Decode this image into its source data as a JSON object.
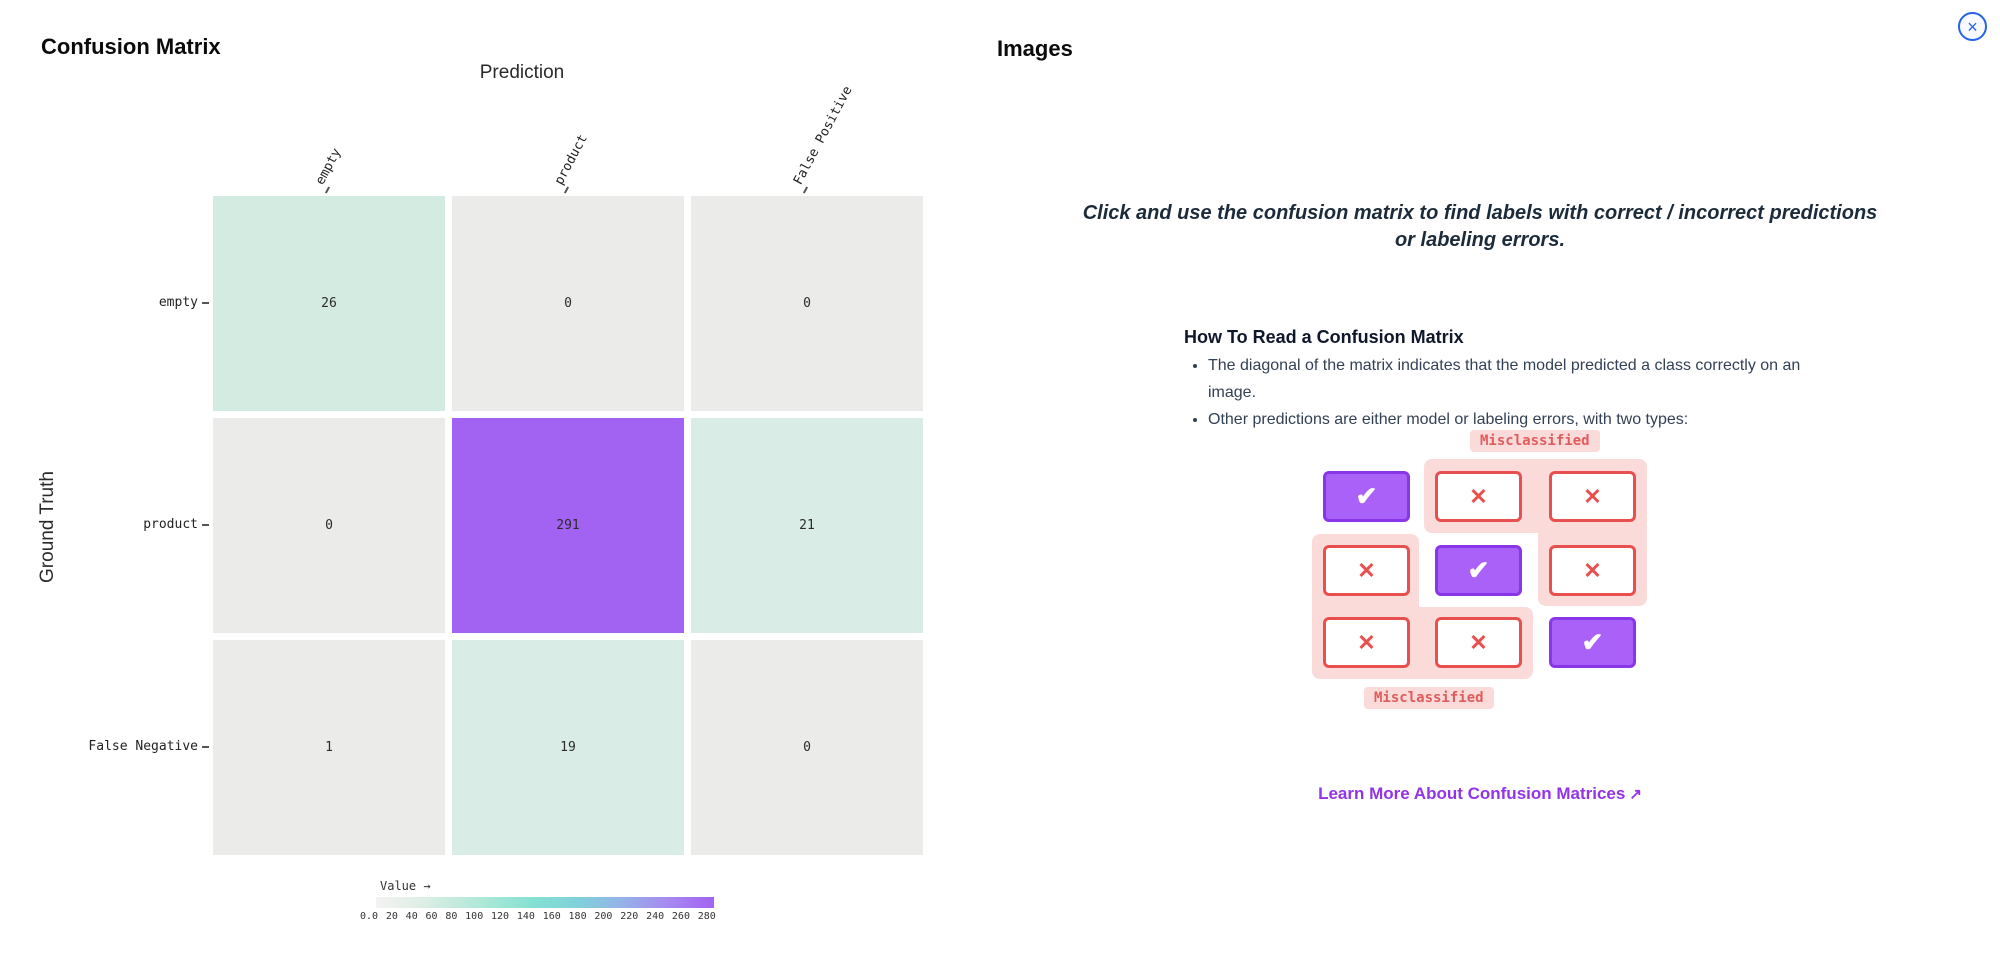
{
  "left_panel": {
    "title": "Confusion Matrix",
    "colorbar": {
      "label": "Value →",
      "ticks": [
        "0.0",
        "20",
        "40",
        "60",
        "80",
        "100",
        "120",
        "140",
        "160",
        "180",
        "200",
        "220",
        "240",
        "260",
        "280"
      ]
    }
  },
  "chart_data": {
    "type": "heatmap",
    "title": "Confusion Matrix",
    "xlabel": "Prediction",
    "ylabel": "Ground Truth",
    "x_categories": [
      "empty",
      "product",
      "False Positive"
    ],
    "y_categories": [
      "empty",
      "product",
      "False Negative"
    ],
    "matrix": [
      [
        26,
        0,
        0
      ],
      [
        0,
        291,
        21
      ],
      [
        1,
        19,
        0
      ]
    ],
    "value_range": [
      0,
      291
    ],
    "colorscale": [
      "#f4f3f1",
      "#7fe0d3",
      "#a263f2"
    ],
    "legend_position": "bottom",
    "rows": [
      {
        "label": "empty",
        "cells": [
          {
            "value": "26",
            "color": "#d4ebe2"
          },
          {
            "value": "0",
            "color": "#ebebe9"
          },
          {
            "value": "0",
            "color": "#ebebe9"
          }
        ]
      },
      {
        "label": "product",
        "cells": [
          {
            "value": "0",
            "color": "#ebebe9"
          },
          {
            "value": "291",
            "color": "#a263f2"
          },
          {
            "value": "21",
            "color": "#d9ece6"
          }
        ]
      },
      {
        "label": "False Negative",
        "cells": [
          {
            "value": "1",
            "color": "#ebebe9"
          },
          {
            "value": "19",
            "color": "#d9ece6"
          },
          {
            "value": "0",
            "color": "#ebebe9"
          }
        ]
      }
    ]
  },
  "right_panel": {
    "title": "Images",
    "close_icon": "×",
    "instruction": "Click and use the confusion matrix to find labels with correct / incorrect predictions or labeling errors.",
    "howto_heading": "How To Read a Confusion Matrix",
    "bullets": [
      "The diagonal of the matrix indicates that the model predicted a class correctly on an image.",
      "Other predictions are either model or labeling errors, with two types:"
    ],
    "diagram": {
      "misclassified_top_label": "Misclassified",
      "misclassified_bottom_label": "Misclassified",
      "check_glyph": "✔",
      "cross_glyph": "✕"
    },
    "link_label": "Learn More About Confusion Matrices",
    "link_arrow": "↗",
    "colors": {
      "correct_fill": "#a961f7",
      "correct_border": "#8936e8",
      "error_border": "#e8504f",
      "highlight_pink": "#fbdada",
      "misclassified_text": "#e05c5c",
      "link_purple": "#9333ea",
      "close_blue": "#2563eb"
    }
  }
}
